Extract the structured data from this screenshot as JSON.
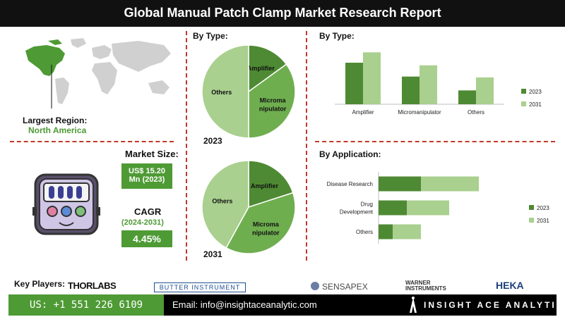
{
  "header": {
    "title": "Global Manual Patch Clamp Market Research Report"
  },
  "region": {
    "label": "Largest Region:",
    "value": "North America"
  },
  "market_size": {
    "label": "Market Size:",
    "value_line1": "US$ 15.20",
    "value_line2": "Mn (2023)"
  },
  "cagr": {
    "label": "CAGR",
    "period": "(2024-2031)",
    "value": "4.45%"
  },
  "by_type_pie": {
    "title": "By Type:",
    "year_a": "2023",
    "year_b": "2031"
  },
  "by_type_bar": {
    "title": "By Type:"
  },
  "by_application": {
    "title": "By Application:"
  },
  "key_players": {
    "label": "Key Players:",
    "logos": [
      "THORLABS",
      "BUTTER INSTRUMENT",
      "SENSAPEX",
      "WARNER INSTRUMENTS",
      "HEKA"
    ]
  },
  "contact": {
    "phone": "US: +1 551 226 6109",
    "email": "Email: info@insightaceanalytic.com",
    "brand": "INSIGHT ACE ANALYTIC"
  },
  "colors": {
    "dark_green": "#4e8a33",
    "mid_green": "#6fae4f",
    "light_green": "#a9d08e",
    "divider": "#c0392b"
  },
  "chart_data": [
    {
      "type": "pie",
      "title": "By Type:",
      "year": "2023",
      "labels": [
        "Amplifier",
        "Micromanipulator",
        "Others"
      ],
      "values": [
        15,
        35,
        50
      ]
    },
    {
      "type": "pie",
      "year": "2031",
      "labels": [
        "Amplifier",
        "Micromanipulator",
        "Others"
      ],
      "values": [
        20,
        38,
        42
      ]
    },
    {
      "type": "bar",
      "title": "By Type:",
      "categories": [
        "Amplifier",
        "Micromanipulator",
        "Others"
      ],
      "series": [
        {
          "name": "2023",
          "values": [
            48,
            32,
            16
          ]
        },
        {
          "name": "2031",
          "values": [
            60,
            45,
            31
          ]
        }
      ],
      "ylim": [
        0,
        70
      ],
      "legend": "right"
    },
    {
      "type": "bar",
      "orientation": "horizontal",
      "stacked": true,
      "title": "By Application:",
      "categories": [
        "Disease Research",
        "Drug Development",
        "Others"
      ],
      "series": [
        {
          "name": "2023",
          "values": [
            30,
            20,
            10
          ]
        },
        {
          "name": "2031",
          "values": [
            41,
            30,
            20
          ]
        }
      ],
      "xlim": [
        0,
        100
      ],
      "legend": "right"
    }
  ]
}
